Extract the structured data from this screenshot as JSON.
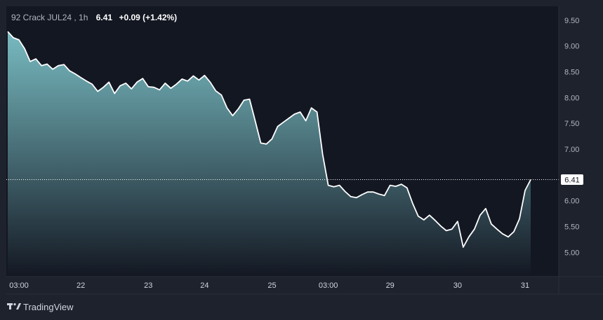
{
  "header": {
    "symbol": "92 Crack JUL24 , 1h",
    "last": "6.41",
    "change": "+0.09 (+1.42%)"
  },
  "brand": {
    "name": "TradingView",
    "icon": "tradingview-logo-icon"
  },
  "price_label": "6.41",
  "colors": {
    "background": "#131722",
    "panel": "#1e222d",
    "line": "#ffffff",
    "area_top": "#7dc3c9",
    "area_bottom": "#131722",
    "text": "#b2b5be"
  },
  "chart_data": {
    "type": "area",
    "title": "",
    "xlabel": "",
    "ylabel": "",
    "ylim": [
      4.53,
      9.77
    ],
    "y_ticks": [
      "9.50",
      "9.00",
      "8.50",
      "8.00",
      "7.50",
      "7.00",
      "6.50",
      "6.00",
      "5.50",
      "5.00"
    ],
    "x_ticks": [
      {
        "label": "03:00",
        "index": 2
      },
      {
        "label": "22",
        "index": 13
      },
      {
        "label": "23",
        "index": 25
      },
      {
        "label": "24",
        "index": 35
      },
      {
        "label": "25",
        "index": 47
      },
      {
        "label": "03:00",
        "index": 57
      },
      {
        "label": "29",
        "index": 68
      },
      {
        "label": "30",
        "index": 80
      },
      {
        "label": "31",
        "index": 92
      }
    ],
    "last_value": 6.41,
    "grid": false,
    "series": [
      {
        "values": [
          9.28,
          9.16,
          9.12,
          8.95,
          8.7,
          8.75,
          8.62,
          8.65,
          8.55,
          8.62,
          8.64,
          8.52,
          8.46,
          8.39,
          8.32,
          8.26,
          8.12,
          8.2,
          8.3,
          8.08,
          8.23,
          8.28,
          8.17,
          8.3,
          8.37,
          8.21,
          8.2,
          8.15,
          8.28,
          8.18,
          8.26,
          8.36,
          8.32,
          8.42,
          8.34,
          8.43,
          8.3,
          8.13,
          8.05,
          7.8,
          7.65,
          7.78,
          7.95,
          7.97,
          7.55,
          7.12,
          7.1,
          7.2,
          7.44,
          7.52,
          7.6,
          7.68,
          7.72,
          7.55,
          7.8,
          7.72,
          6.9,
          6.3,
          6.27,
          6.3,
          6.18,
          6.08,
          6.06,
          6.12,
          6.17,
          6.17,
          6.13,
          6.1,
          6.3,
          6.28,
          6.32,
          6.25,
          5.95,
          5.7,
          5.63,
          5.72,
          5.62,
          5.51,
          5.42,
          5.45,
          5.6,
          5.1,
          5.3,
          5.45,
          5.72,
          5.85,
          5.55,
          5.45,
          5.36,
          5.3,
          5.4,
          5.65,
          6.2,
          6.41
        ]
      }
    ]
  }
}
